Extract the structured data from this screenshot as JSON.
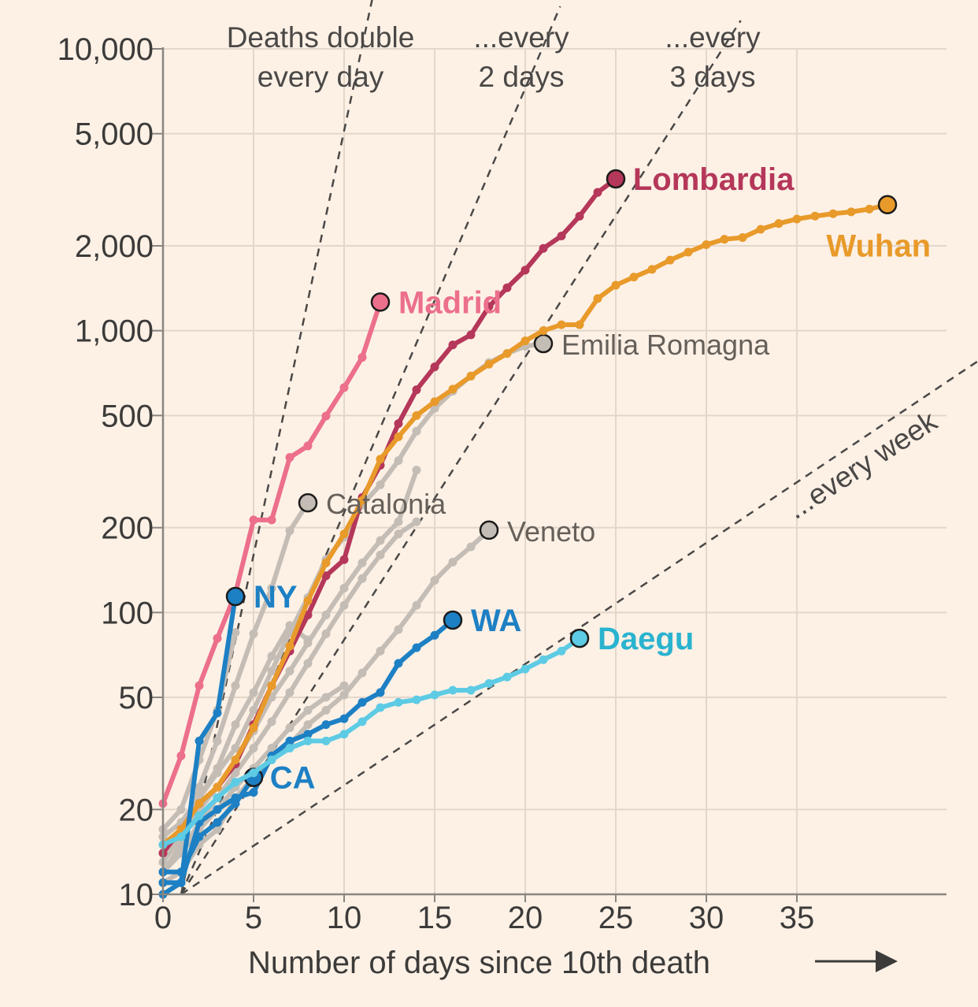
{
  "chart_data": {
    "type": "line",
    "xlabel": "Number of days since 10th death",
    "x_range": [
      0,
      43
    ],
    "x_ticks": [
      "0",
      "5",
      "10",
      "15",
      "20",
      "25",
      "30",
      "35"
    ],
    "y_scale": "log",
    "ylim": [
      10,
      10000
    ],
    "y_ticks": [
      {
        "value": 10000,
        "label": "10,000"
      },
      {
        "value": 5000,
        "label": "5,000"
      },
      {
        "value": 2000,
        "label": "2,000"
      },
      {
        "value": 1000,
        "label": "1,000"
      },
      {
        "value": 500,
        "label": "500"
      },
      {
        "value": 200,
        "label": "200"
      },
      {
        "value": 100,
        "label": "100"
      },
      {
        "value": 50,
        "label": "50"
      },
      {
        "value": 20,
        "label": "20"
      },
      {
        "value": 10,
        "label": "10"
      }
    ],
    "grid": true,
    "doubling_guides": [
      {
        "doubling_days": 1,
        "label": [
          "Deaths double",
          "every day"
        ]
      },
      {
        "doubling_days": 2,
        "label": [
          "...every",
          "2 days"
        ]
      },
      {
        "doubling_days": 3,
        "label": [
          "...every",
          "3 days"
        ]
      },
      {
        "doubling_days": 7,
        "label": [
          "...every week"
        ]
      }
    ],
    "series": [
      {
        "name": "Lombardia",
        "color": "#b5375a",
        "emphasis": "highlight",
        "x": [
          0,
          1,
          2,
          3,
          4,
          5,
          6,
          7,
          8,
          9,
          10,
          11,
          12,
          13,
          14,
          15,
          16,
          17,
          18,
          19,
          20,
          21,
          22,
          23,
          24,
          25
        ],
        "y": [
          14,
          17,
          21,
          24,
          29,
          40,
          55,
          73,
          98,
          135,
          154,
          256,
          333,
          468,
          617,
          744,
          890,
          966,
          1218,
          1420,
          1640,
          1959,
          2168,
          2549,
          3095,
          3456
        ]
      },
      {
        "name": "Wuhan",
        "color": "#e89a2a",
        "emphasis": "highlight",
        "x": [
          0,
          1,
          2,
          3,
          4,
          5,
          6,
          7,
          8,
          9,
          10,
          11,
          12,
          13,
          14,
          15,
          16,
          17,
          18,
          19,
          20,
          21,
          22,
          23,
          24,
          25,
          26,
          27,
          28,
          29,
          30,
          31,
          32,
          33,
          34,
          35,
          36,
          37,
          38,
          39,
          40
        ],
        "y": [
          15,
          17,
          21,
          24,
          30,
          39,
          55,
          76,
          110,
          150,
          190,
          250,
          350,
          420,
          500,
          560,
          620,
          690,
          760,
          830,
          920,
          1000,
          1050,
          1050,
          1300,
          1450,
          1550,
          1650,
          1780,
          1900,
          2020,
          2110,
          2140,
          2290,
          2400,
          2490,
          2550,
          2600,
          2640,
          2700,
          2800
        ]
      },
      {
        "name": "Madrid",
        "color": "#ec6f8c",
        "emphasis": "highlight",
        "x": [
          0,
          1,
          2,
          3,
          4,
          5,
          6,
          7,
          8,
          9,
          10,
          11,
          12
        ],
        "y": [
          21,
          31,
          55,
          81,
          117,
          213,
          213,
          355,
          390,
          498,
          628,
          804,
          1263
        ]
      },
      {
        "name": "NY",
        "color": "#1d80c4",
        "emphasis": "highlight",
        "x": [
          0,
          1,
          2,
          3,
          4
        ],
        "y": [
          11,
          11,
          35,
          44,
          114
        ]
      },
      {
        "name": "WA",
        "color": "#1d80c4",
        "emphasis": "highlight",
        "x": [
          0,
          1,
          2,
          3,
          4,
          5,
          6,
          7,
          8,
          9,
          10,
          11,
          12,
          13,
          14,
          15,
          16
        ],
        "y": [
          10,
          11,
          18,
          20,
          22,
          23,
          31,
          35,
          37,
          40,
          42,
          48,
          52,
          66,
          75,
          83,
          94
        ]
      },
      {
        "name": "CA",
        "color": "#1d80c4",
        "emphasis": "highlight",
        "x": [
          0,
          1,
          2,
          3,
          4,
          5
        ],
        "y": [
          12,
          12,
          16,
          18,
          21,
          26
        ]
      },
      {
        "name": "Daegu",
        "color": "#5ecbe4",
        "emphasis": "highlight",
        "x": [
          0,
          1,
          2,
          3,
          4,
          5,
          6,
          7,
          8,
          9,
          10,
          11,
          12,
          13,
          14,
          15,
          16,
          17,
          18,
          19,
          20,
          21,
          22,
          23
        ],
        "y": [
          15,
          16,
          19,
          22,
          25,
          27,
          30,
          33,
          35,
          35,
          37,
          41,
          46,
          48,
          49,
          51,
          53,
          53,
          56,
          59,
          63,
          68,
          73,
          81
        ]
      },
      {
        "name": "Emilia Romagna",
        "color": "#c4bdb5",
        "emphasis": "context",
        "x": [
          0,
          1,
          2,
          3,
          4,
          5,
          6,
          7,
          8,
          9,
          10,
          11,
          12,
          13,
          14,
          15,
          16,
          17,
          18,
          19,
          20,
          21
        ],
        "y": [
          14,
          17,
          22,
          27,
          33,
          45,
          62,
          85,
          113,
          154,
          185,
          241,
          284,
          346,
          440,
          530,
          610,
          690,
          770,
          830,
          880,
          900
        ]
      },
      {
        "name": "Catalonia",
        "color": "#c4bdb5",
        "emphasis": "context",
        "x": [
          0,
          1,
          2,
          3,
          4,
          5,
          6,
          7,
          8
        ],
        "y": [
          12,
          15,
          24,
          35,
          55,
          84,
          122,
          195,
          245
        ]
      },
      {
        "name": "Veneto",
        "color": "#c4bdb5",
        "emphasis": "context",
        "x": [
          0,
          1,
          2,
          3,
          4,
          5,
          6,
          7,
          8,
          9,
          10,
          11,
          12,
          13,
          14,
          15,
          16,
          17,
          18
        ],
        "y": [
          11,
          12,
          15,
          17,
          22,
          26,
          30,
          34,
          40,
          45,
          51,
          61,
          73,
          87,
          106,
          130,
          151,
          171,
          196
        ]
      },
      {
        "name": "",
        "color": "#c4bdb5",
        "emphasis": "context",
        "x": [
          0,
          1,
          2,
          3,
          4,
          5,
          6,
          7,
          8,
          9,
          10,
          11,
          12,
          13,
          14
        ],
        "y": [
          13,
          16,
          20,
          24,
          30,
          38,
          50,
          62,
          78,
          98,
          122,
          150,
          180,
          210,
          320
        ]
      },
      {
        "name": "",
        "color": "#c4bdb5",
        "emphasis": "context",
        "x": [
          0,
          1,
          2,
          3,
          4,
          5,
          6,
          7,
          8,
          9,
          10,
          11,
          12,
          13,
          14
        ],
        "y": [
          12,
          14,
          18,
          22,
          27,
          33,
          41,
          52,
          66,
          84,
          106,
          132,
          160,
          190,
          210
        ]
      },
      {
        "name": "",
        "color": "#c4bdb5",
        "emphasis": "context",
        "x": [
          0,
          1,
          2,
          3,
          4,
          5,
          6,
          7,
          8,
          9,
          10
        ],
        "y": [
          12,
          14,
          17,
          20,
          24,
          28,
          33,
          39,
          45,
          50,
          55
        ]
      },
      {
        "name": "",
        "color": "#c4bdb5",
        "emphasis": "context",
        "x": [
          0,
          1,
          2,
          3,
          4,
          5,
          6,
          7,
          8
        ],
        "y": [
          16,
          18,
          22,
          28,
          40,
          52,
          70,
          90,
          80
        ]
      },
      {
        "name": "",
        "color": "#c4bdb5",
        "emphasis": "context",
        "x": [
          0,
          1,
          2,
          3,
          4
        ],
        "y": [
          17,
          20,
          30,
          45,
          85
        ]
      }
    ],
    "end_labels": [
      {
        "series": "Lombardia",
        "text": "Lombardia",
        "style": "bold",
        "color": "#b5375a",
        "anchor": "start",
        "dx": 0.95,
        "dy": 0.0
      },
      {
        "series": "Wuhan",
        "text": "Wuhan",
        "style": "bold",
        "color": "#e89a2a",
        "anchor": "end",
        "dx": 2.1,
        "dy": -0.15
      },
      {
        "series": "Madrid",
        "text": "Madrid",
        "style": "bold",
        "color": "#ec6f8c",
        "anchor": "start",
        "dx": 1.0,
        "dy": 0.0
      },
      {
        "series": "NY",
        "text": "NY",
        "style": "bold",
        "color": "#1d80c4",
        "anchor": "start",
        "dx": 1.0,
        "dy": 0.0
      },
      {
        "series": "WA",
        "text": "WA",
        "style": "bold",
        "color": "#1d80c4",
        "anchor": "start",
        "dx": 1.0,
        "dy": 0.0
      },
      {
        "series": "CA",
        "text": "CA",
        "style": "bold",
        "color": "#1d80c4",
        "anchor": "start",
        "dx": 0.9,
        "dy": 0.0
      },
      {
        "series": "Daegu",
        "text": "Daegu",
        "style": "bold",
        "color": "#2ab3cf",
        "anchor": "start",
        "dx": 1.0,
        "dy": 0.0
      },
      {
        "series": "Emilia Romagna",
        "text": "Emilia Romagna",
        "style": "gray",
        "color": "#66605a",
        "anchor": "start",
        "dx": 1.0,
        "dy": 0.0
      },
      {
        "series": "Catalonia",
        "text": "Catalonia",
        "style": "gray",
        "color": "#66605a",
        "anchor": "start",
        "dx": 1.0,
        "dy": 0.0
      },
      {
        "series": "Veneto",
        "text": "Veneto",
        "style": "gray",
        "color": "#66605a",
        "anchor": "start",
        "dx": 1.0,
        "dy": 0.0
      }
    ]
  }
}
